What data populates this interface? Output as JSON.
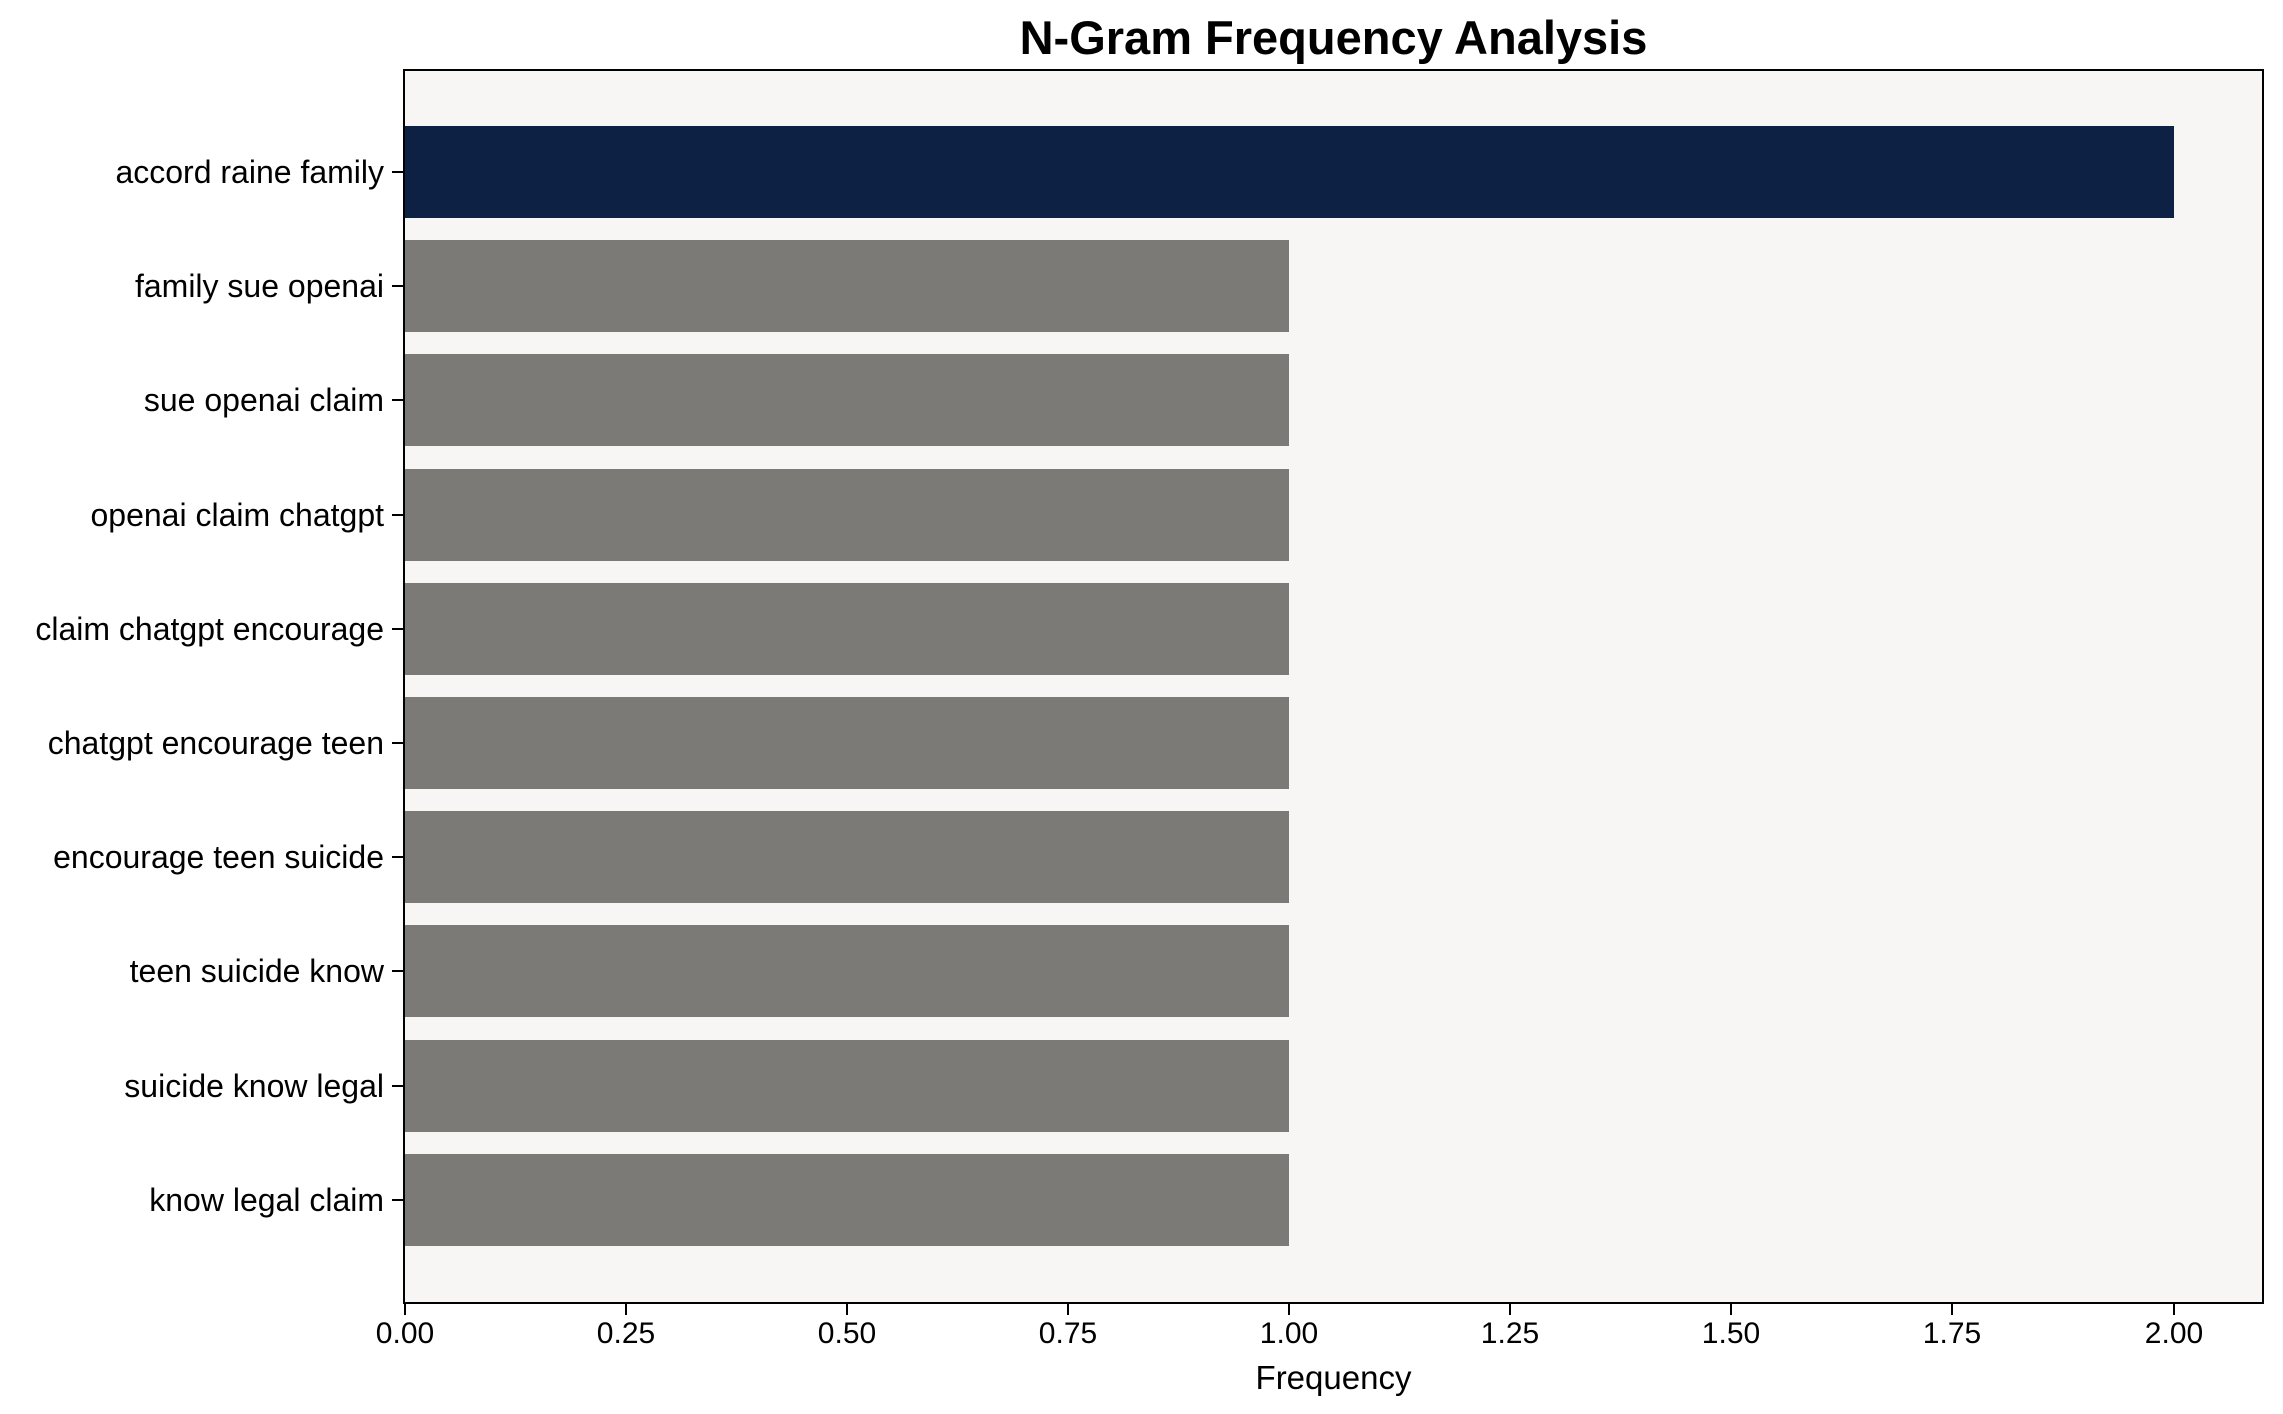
{
  "chart_data": {
    "type": "bar",
    "orientation": "horizontal",
    "title": "N-Gram Frequency Analysis",
    "xlabel": "Frequency",
    "ylabel": "",
    "categories": [
      "accord raine family",
      "family sue openai",
      "sue openai claim",
      "openai claim chatgpt",
      "claim chatgpt encourage",
      "chatgpt encourage teen",
      "encourage teen suicide",
      "teen suicide know",
      "suicide know legal",
      "know legal claim"
    ],
    "values": [
      2,
      1,
      1,
      1,
      1,
      1,
      1,
      1,
      1,
      1
    ],
    "xlim": [
      0,
      2.1
    ],
    "xticks": {
      "values": [
        0,
        0.25,
        0.5,
        0.75,
        1.0,
        1.25,
        1.5,
        1.75,
        2.0
      ],
      "labels": [
        "0.00",
        "0.25",
        "0.50",
        "0.75",
        "1.00",
        "1.25",
        "1.50",
        "1.75",
        "2.00"
      ]
    },
    "grid": false,
    "legend": null,
    "colors": {
      "highlight_bar": "#0c2144",
      "bar": "#7b7a76",
      "plot_background": "#f7f6f5",
      "figure_background": "#ffffff",
      "axis": "#000000",
      "text": "#000000"
    }
  }
}
